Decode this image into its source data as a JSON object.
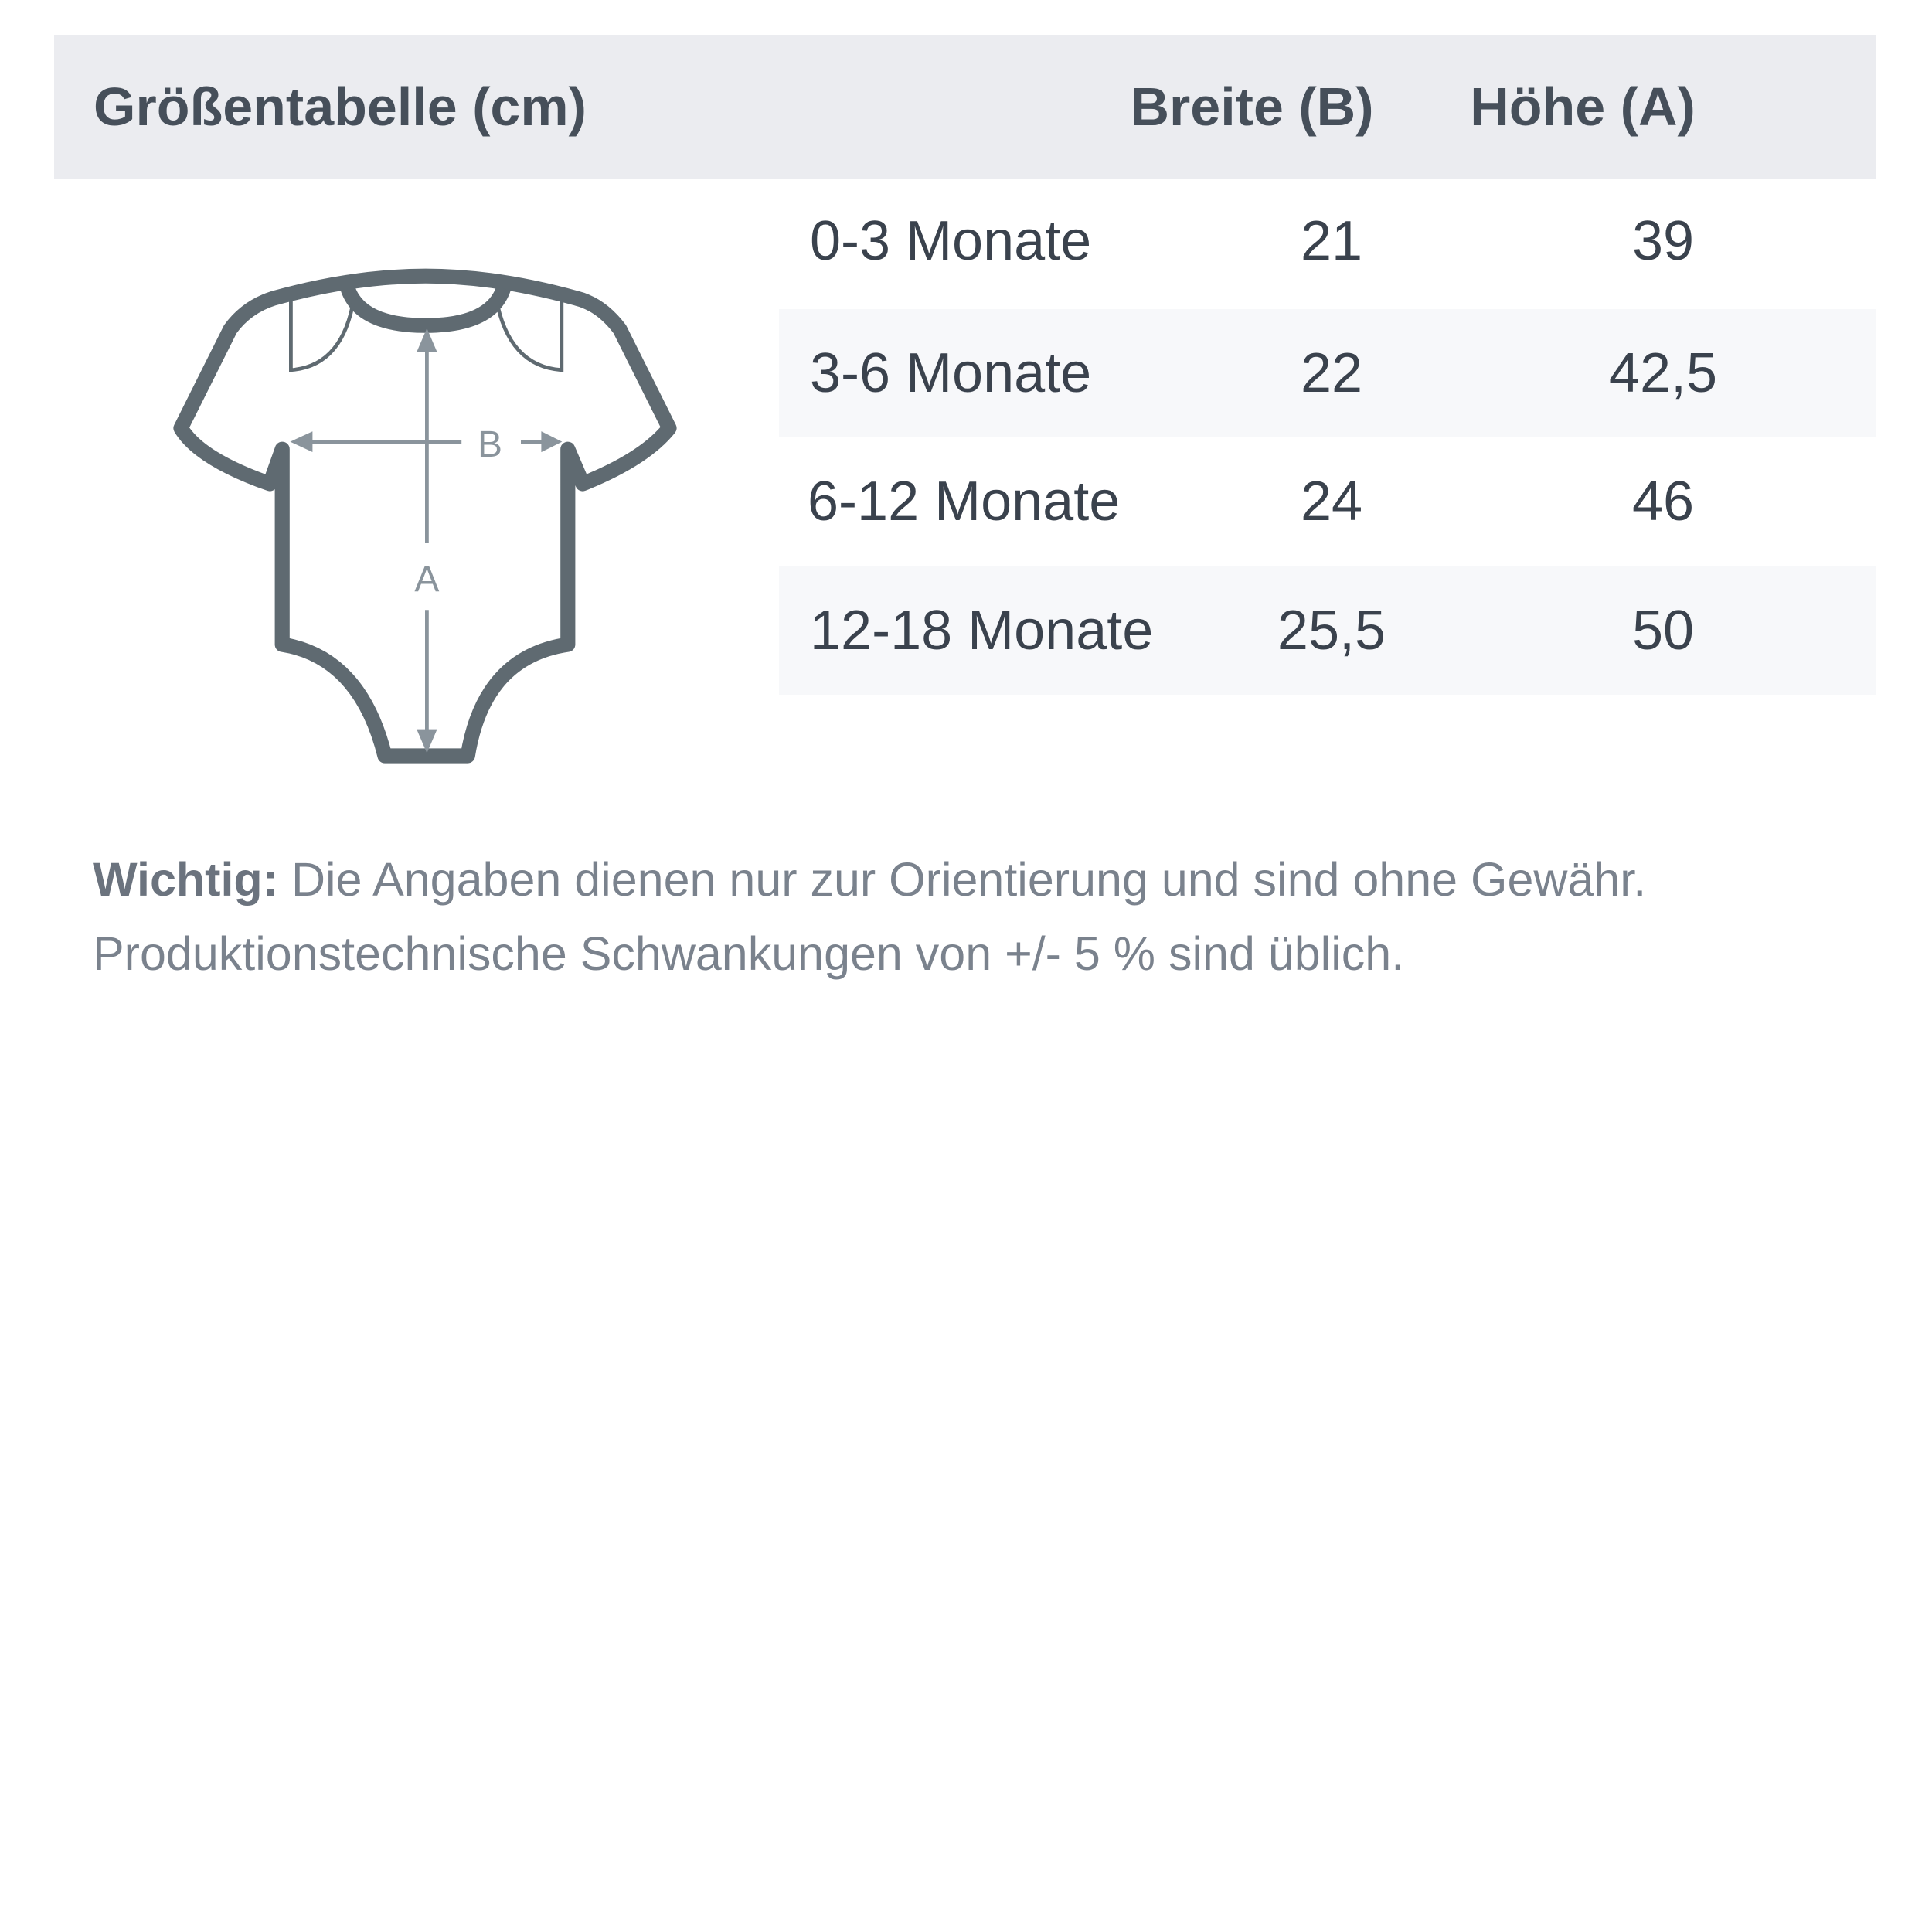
{
  "header": {
    "title": "Größentabelle (cm)",
    "col_width": "Breite (B)",
    "col_height": "Höhe (A)"
  },
  "rows": [
    {
      "size": "0-3 Monate",
      "width": "21",
      "height": "39"
    },
    {
      "size": "3-6 Monate",
      "width": "22",
      "height": "42,5"
    },
    {
      "size": "6-12 Monate",
      "width": "24",
      "height": "46"
    },
    {
      "size": "12-18 Monate",
      "width": "25,5",
      "height": "50"
    }
  ],
  "diagram": {
    "label_b": "B",
    "label_a": "A",
    "outline_color": "#5f6a71",
    "arrow_color": "#8a949c"
  },
  "note": {
    "bold": "Wichtig:",
    "line1": " Die Angaben dienen nur zur Orientierung und sind ohne Gewähr.",
    "line2": "Produktionstechnische Schwankungen von +/- 5 % sind üblich."
  }
}
